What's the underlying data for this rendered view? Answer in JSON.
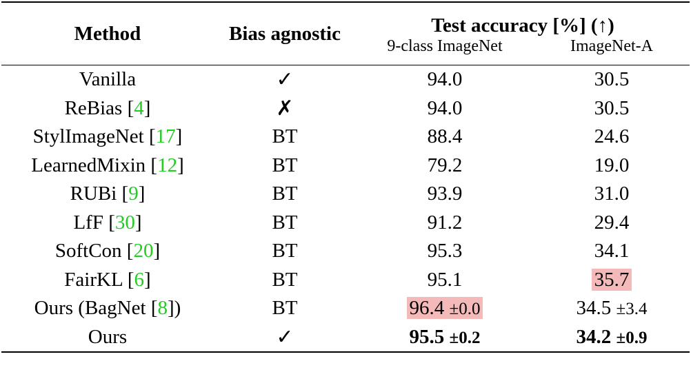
{
  "headers": {
    "method": "Method",
    "bias_agnostic": "Bias agnostic",
    "test_accuracy": "Test accuracy [%] (↑)",
    "col_imagenet9": "9-class ImageNet",
    "col_imageneta": "ImageNet-A"
  },
  "rows": [
    {
      "method": "Vanilla",
      "cite": "",
      "bias": "✓",
      "acc1": "94.0",
      "acc1_pm": "",
      "acc2": "30.5",
      "acc2_pm": ""
    },
    {
      "method": "ReBias",
      "cite": "4",
      "bias": "✗",
      "acc1": "94.0",
      "acc1_pm": "",
      "acc2": "30.5",
      "acc2_pm": ""
    },
    {
      "method": "StylImageNet",
      "cite": "17",
      "bias": "BT",
      "acc1": "88.4",
      "acc1_pm": "",
      "acc2": "24.6",
      "acc2_pm": ""
    },
    {
      "method": "LearnedMixin",
      "cite": "12",
      "bias": "BT",
      "acc1": "79.2",
      "acc1_pm": "",
      "acc2": "19.0",
      "acc2_pm": ""
    },
    {
      "method": "RUBi",
      "cite": "9",
      "bias": "BT",
      "acc1": "93.9",
      "acc1_pm": "",
      "acc2": "31.0",
      "acc2_pm": ""
    },
    {
      "method": "LfF",
      "cite": "30",
      "bias": "BT",
      "acc1": "91.2",
      "acc1_pm": "",
      "acc2": "29.4",
      "acc2_pm": ""
    },
    {
      "method": "SoftCon",
      "cite": "20",
      "bias": "BT",
      "acc1": "95.3",
      "acc1_pm": "",
      "acc2": "34.1",
      "acc2_pm": ""
    },
    {
      "method": "FairKL",
      "cite": "6",
      "bias": "BT",
      "acc1": "95.1",
      "acc1_pm": "",
      "acc2": "35.7",
      "acc2_pm": ""
    },
    {
      "method": "Ours (BagNet ",
      "cite": "8",
      "method_suffix": ")",
      "bias": "BT",
      "acc1": "96.4",
      "acc1_pm": "±0.0",
      "acc2": "34.5",
      "acc2_pm": "±3.4"
    },
    {
      "method": "Ours",
      "cite": "",
      "bias": "✓",
      "acc1": "95.5",
      "acc1_pm": "±0.2",
      "acc2": "34.2",
      "acc2_pm": "±0.9"
    }
  ],
  "highlight_color": "#f4b9b9",
  "citation_color": "#22cc22"
}
